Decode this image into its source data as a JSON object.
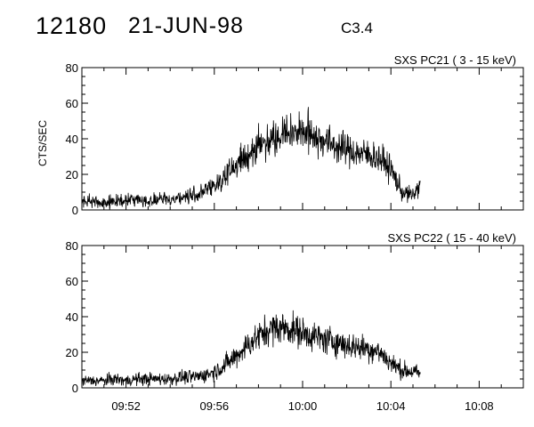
{
  "header": {
    "event_id": "12180",
    "date": "21-JUN-98",
    "flare_class": "C3.4"
  },
  "colors": {
    "line": "#000000",
    "background": "#ffffff"
  },
  "chart_data": [
    {
      "type": "line",
      "title": "SXS PC21  (  3 - 15 keV)",
      "ylabel": "CTS/SEC",
      "xlabel": "",
      "xlim": [
        "09:50",
        "10:10"
      ],
      "ylim": [
        0,
        80
      ],
      "yticks": [
        0,
        20,
        40,
        60,
        80
      ],
      "xticks": [
        "09:52",
        "09:56",
        "10:00",
        "10:04",
        "10:08"
      ],
      "show_xtick_labels": false,
      "grid": false,
      "series": [
        {
          "x": [
            "09:50:00",
            "09:50:30",
            "09:51:00",
            "09:51:30",
            "09:52:00",
            "09:52:30",
            "09:53:00",
            "09:53:30",
            "09:54:00",
            "09:54:30",
            "09:55:00",
            "09:55:30",
            "09:56:00",
            "09:56:30",
            "09:57:00",
            "09:57:30",
            "09:58:00",
            "09:58:30",
            "09:59:00",
            "09:59:30",
            "10:00:00",
            "10:00:30",
            "10:01:00",
            "10:01:30",
            "10:02:00",
            "10:02:30",
            "10:03:00",
            "10:03:30",
            "10:04:00",
            "10:04:30",
            "10:05:00",
            "10:05:20"
          ],
          "y": [
            5,
            5,
            4,
            5,
            5,
            6,
            5,
            6,
            6,
            7,
            8,
            10,
            14,
            19,
            25,
            31,
            36,
            40,
            43,
            44,
            44,
            42,
            39,
            36,
            34,
            32,
            31,
            29,
            23,
            10,
            8,
            14
          ]
        }
      ]
    },
    {
      "type": "line",
      "title": "SXS PC22  ( 15 - 40 keV)",
      "ylabel": "",
      "xlabel": "",
      "xlim": [
        "09:50",
        "10:10"
      ],
      "ylim": [
        0,
        80
      ],
      "yticks": [
        0,
        20,
        40,
        60,
        80
      ],
      "xticks": [
        "09:52",
        "09:56",
        "10:00",
        "10:04",
        "10:08"
      ],
      "show_xtick_labels": true,
      "grid": false,
      "series": [
        {
          "x": [
            "09:50:00",
            "09:50:30",
            "09:51:00",
            "09:51:30",
            "09:52:00",
            "09:52:30",
            "09:53:00",
            "09:53:30",
            "09:54:00",
            "09:54:30",
            "09:55:00",
            "09:55:30",
            "09:56:00",
            "09:56:30",
            "09:57:00",
            "09:57:30",
            "09:58:00",
            "09:58:30",
            "09:59:00",
            "09:59:30",
            "10:00:00",
            "10:00:30",
            "10:01:00",
            "10:01:30",
            "10:02:00",
            "10:02:30",
            "10:03:00",
            "10:03:30",
            "10:04:00",
            "10:04:30",
            "10:05:00",
            "10:05:20"
          ],
          "y": [
            4,
            4,
            4,
            5,
            4,
            5,
            5,
            5,
            5,
            6,
            6,
            7,
            9,
            13,
            18,
            24,
            29,
            33,
            34,
            33,
            31,
            29,
            27,
            26,
            24,
            23,
            22,
            20,
            14,
            10,
            9,
            8
          ]
        }
      ]
    }
  ]
}
